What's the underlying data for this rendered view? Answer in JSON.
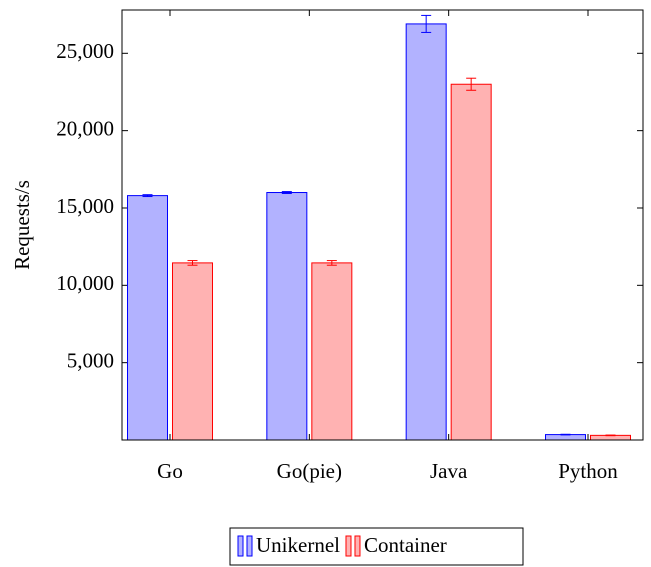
{
  "chart_data": {
    "type": "bar",
    "categories": [
      "Go",
      "Go(pie)",
      "Java",
      "Python"
    ],
    "y_label": "Requests/s",
    "series": [
      {
        "name": "Unikernel",
        "color": "#0000ff",
        "values": [
          15800,
          16000,
          26900,
          350
        ],
        "errors": [
          60,
          60,
          550,
          20
        ]
      },
      {
        "name": "Container",
        "color": "#ff0000",
        "values": [
          11450,
          11450,
          23000,
          300
        ],
        "errors": [
          150,
          150,
          390,
          20
        ]
      }
    ],
    "ylim": [
      0,
      27800
    ],
    "yticks": [
      {
        "value": 5000,
        "label": "5,000"
      },
      {
        "value": 10000,
        "label": "10,000"
      },
      {
        "value": 15000,
        "label": "15,000"
      },
      {
        "value": 20000,
        "label": "20,000"
      },
      {
        "value": 25000,
        "label": "25,000"
      }
    ],
    "legend": "bottom"
  }
}
